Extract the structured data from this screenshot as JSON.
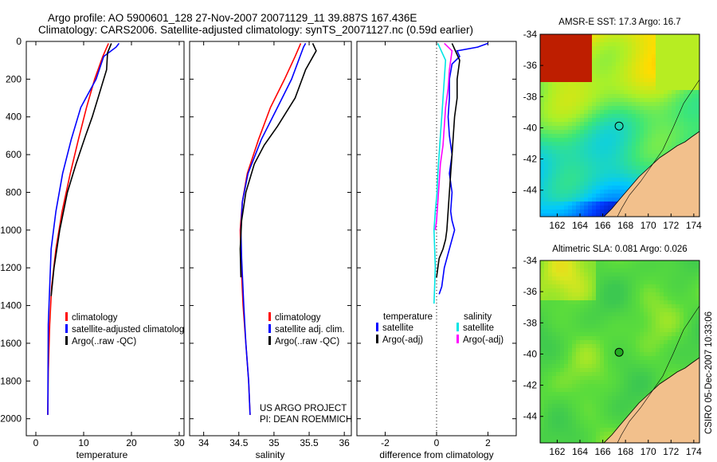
{
  "header": {
    "line1": "Argo profile: AO 5900601_128 27-Nov-2007 20071129_11 39.887S 167.436E",
    "line2": "Climatology: CARS2006. Satellite-adjusted climatology: synTS_20071127.nc (0.59d earlier)"
  },
  "colors": {
    "climatology": "#ff0000",
    "satellite": "#0000ff",
    "argo": "#000000",
    "sal_satellite": "#00e5e5",
    "sal_argo": "#ff00ff"
  },
  "depth_axis": {
    "ticks": [
      0,
      200,
      400,
      600,
      800,
      1000,
      1200,
      1400,
      1600,
      1800,
      2000
    ],
    "ylim": [
      0,
      2090
    ],
    "reversed": true
  },
  "chart_data": [
    {
      "type": "line",
      "xlabel": "temperature",
      "xlim": [
        -2,
        31
      ],
      "xticks": [
        0,
        10,
        20,
        30
      ],
      "legend": [
        "climatology",
        "satellite-adjusted climatolog",
        "Argo(..raw -QC)"
      ],
      "series": [
        {
          "name": "climatology",
          "color": "#ff0000",
          "x": [
            15.2,
            14.0,
            12.3,
            10.6,
            8.9,
            7.2,
            5.5,
            4.2,
            3.3,
            2.9,
            2.6,
            2.5
          ],
          "y": [
            10,
            80,
            200,
            350,
            520,
            700,
            900,
            1100,
            1300,
            1500,
            1750,
            1980
          ]
        },
        {
          "name": "satellite-adjusted climatolog",
          "color": "#0000ff",
          "x": [
            17.4,
            16.8,
            14.2,
            12.6,
            9.4,
            7.4,
            5.6,
            4.2,
            3.2,
            2.9,
            2.6,
            2.5
          ],
          "y": [
            10,
            30,
            80,
            200,
            350,
            520,
            700,
            900,
            1100,
            1300,
            1500,
            1980
          ]
        },
        {
          "name": "Argo(..raw -QC)",
          "color": "#000000",
          "x": [
            15.8,
            15.0,
            14.8,
            13.0,
            11.8,
            10.4,
            8.4,
            6.6,
            5.0,
            3.8,
            3.2
          ],
          "y": [
            10,
            60,
            150,
            300,
            400,
            500,
            650,
            800,
            1000,
            1200,
            1350
          ]
        }
      ]
    },
    {
      "type": "line",
      "xlabel": "salinity",
      "xlim": [
        33.8,
        36.1
      ],
      "xticks": [
        34,
        34.5,
        35,
        35.5,
        36
      ],
      "legend": [
        "climatology",
        "satellite adj. clim.",
        "Argo(..raw -QC)"
      ],
      "series": [
        {
          "name": "climatology",
          "color": "#ff0000",
          "x": [
            35.38,
            35.3,
            35.15,
            34.95,
            34.78,
            34.62,
            34.55,
            34.52,
            34.53,
            34.56,
            34.6,
            34.64,
            34.66
          ],
          "y": [
            10,
            80,
            200,
            350,
            520,
            700,
            850,
            1000,
            1150,
            1400,
            1600,
            1800,
            1980
          ]
        },
        {
          "name": "satellite adj. clim.",
          "color": "#0000ff",
          "x": [
            35.45,
            35.42,
            35.25,
            35.05,
            34.82,
            34.63,
            34.55,
            34.53,
            34.54,
            34.57,
            34.6,
            34.64,
            34.66
          ],
          "y": [
            10,
            30,
            200,
            350,
            520,
            700,
            850,
            1000,
            1150,
            1400,
            1600,
            1800,
            1980
          ]
        },
        {
          "name": "Argo(..raw -QC)",
          "color": "#000000",
          "x": [
            35.55,
            35.6,
            35.45,
            35.3,
            35.05,
            34.86,
            34.72,
            34.6,
            34.54,
            34.52,
            34.53
          ],
          "y": [
            10,
            50,
            150,
            300,
            450,
            550,
            650,
            800,
            950,
            1100,
            1250
          ]
        }
      ]
    },
    {
      "type": "line",
      "xlabel": "difference from climatology",
      "xlim": [
        -3.1,
        3.1
      ],
      "xticks": [
        -2,
        0,
        2
      ],
      "legend": {
        "temperature_header": "temperature",
        "salinity_header": "salinity",
        "temperature": [
          "satellite",
          "Argo(-adj)"
        ],
        "salinity": [
          "satellite",
          "Argo(-adj)"
        ]
      },
      "series": [
        {
          "name": "satellite",
          "group": "temperature",
          "color": "#0000ff",
          "x": [
            2.0,
            1.6,
            0.8,
            0.9,
            0.6,
            0.5,
            0.5,
            0.45,
            0.5,
            0.6,
            0.5,
            0.6,
            0.55,
            0.6,
            0.7,
            0.5,
            0.3,
            0.2,
            0.1
          ],
          "y": [
            10,
            30,
            50,
            80,
            120,
            200,
            300,
            400,
            500,
            600,
            700,
            800,
            900,
            950,
            1000,
            1100,
            1200,
            1300,
            1340
          ]
        },
        {
          "name": "Argo(-adj)",
          "group": "temperature",
          "color": "#000000",
          "x": [
            0.6,
            0.7,
            0.9,
            0.8,
            0.8,
            0.7,
            0.65,
            0.6,
            0.55,
            0.5,
            0.45,
            0.4,
            0.35,
            0.25,
            0.1,
            0.05,
            0.0
          ],
          "y": [
            10,
            40,
            100,
            200,
            300,
            400,
            500,
            600,
            700,
            800,
            900,
            1000,
            1050,
            1100,
            1150,
            1200,
            1250
          ]
        },
        {
          "name": "satellite",
          "group": "salinity",
          "color": "#00e5e5",
          "x": [
            0.05,
            0.35,
            0.3,
            0.25,
            0.2,
            0.15,
            0.1,
            0.05,
            0.02,
            -0.05,
            -0.1,
            -0.05,
            -0.1
          ],
          "y": [
            10,
            100,
            200,
            300,
            400,
            500,
            600,
            700,
            800,
            900,
            1000,
            1200,
            1390
          ]
        },
        {
          "name": "Argo(-adj)",
          "group": "salinity",
          "color": "#ff00ff",
          "x": [
            0.3,
            0.6,
            0.5,
            0.45,
            0.35,
            0.3,
            0.25,
            0.15,
            0.1,
            0.05,
            0.0,
            -0.05
          ],
          "y": [
            10,
            50,
            150,
            250,
            350,
            450,
            550,
            650,
            750,
            850,
            950,
            1000
          ]
        }
      ]
    },
    {
      "type": "heatmap",
      "title_label": "AMSR-E SST: 17.3 Argo: 16.7",
      "xlim": [
        160.5,
        174.5
      ],
      "ylim": [
        -45.7,
        -34
      ],
      "xticks": [
        162,
        164,
        166,
        168,
        170,
        172,
        174
      ],
      "yticks": [
        -34,
        -36,
        -38,
        -40,
        -42,
        -44
      ],
      "marker": {
        "lon": 167.436,
        "lat": -39.887
      }
    },
    {
      "type": "heatmap",
      "title_label": "Altimetric SLA: 0.081 Argo: 0.026",
      "xlim": [
        160.5,
        174.5
      ],
      "ylim": [
        -45.7,
        -34
      ],
      "xticks": [
        162,
        164,
        166,
        168,
        170,
        172,
        174
      ],
      "yticks": [
        -34,
        -36,
        -38,
        -40,
        -42,
        -44
      ],
      "marker": {
        "lon": 167.436,
        "lat": -39.887
      }
    }
  ],
  "annotations": {
    "project_line1": "US ARGO PROJECT",
    "project_line2": "PI: DEAN ROEMMICH",
    "credit": "CSIRO 05-Dec-2007 10:33:06"
  }
}
